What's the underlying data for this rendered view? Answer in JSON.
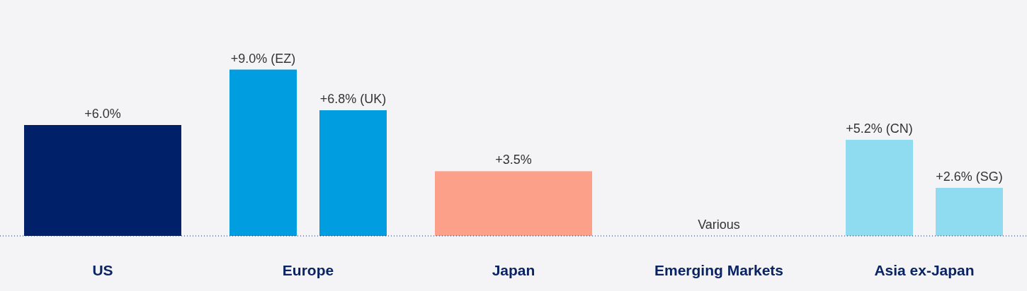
{
  "chart_data": {
    "type": "bar",
    "categories": [
      "US",
      "Europe",
      "Japan",
      "Emerging Markets",
      "Asia ex-Japan"
    ],
    "series": [
      {
        "colors": [
          "#002169",
          "#009ee0",
          "#fda08a",
          null,
          "#8fdcf0"
        ],
        "values": [
          6.0,
          9.0,
          3.5,
          null,
          5.2
        ],
        "value_labels": [
          "+6.0%",
          "+9.0% (EZ)",
          "+3.5%",
          "Various",
          "+5.2% (CN)"
        ]
      },
      {
        "colors": [
          null,
          "#009ee0",
          null,
          null,
          "#8fdcf0"
        ],
        "values": [
          null,
          6.8,
          null,
          null,
          2.6
        ],
        "value_labels": [
          null,
          "+6.8% (UK)",
          null,
          null,
          "+2.6% (SG)"
        ]
      }
    ],
    "grid": false,
    "legend": false
  }
}
